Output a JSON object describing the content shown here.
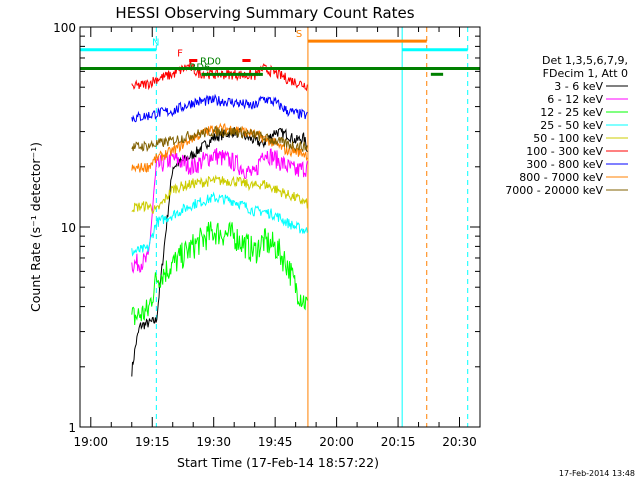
{
  "chart_data": {
    "type": "line",
    "title": "HESSI Observing Summary Count Rates",
    "xlabel": "Start Time (17-Feb-14 18:57:22)",
    "ylabel": "Count Rate (s⁻¹ detector⁻¹)",
    "yscale": "log",
    "ylim": [
      1,
      100
    ],
    "xlim": [
      "18:57:22",
      "20:35:00"
    ],
    "x_ticks": [
      "19:00",
      "19:15",
      "19:30",
      "19:45",
      "20:00",
      "20:15",
      "20:30"
    ],
    "y_ticks": [
      "1",
      "10",
      "100"
    ],
    "grid": false,
    "legend_position": "right",
    "legend_header": [
      "Det 1,3,5,6,7,9,",
      "FDecim 1, Att 0"
    ],
    "legend": [
      {
        "label": "3 - 6 keV",
        "color": "#000000"
      },
      {
        "label": "6 - 12 keV",
        "color": "#ff00ff"
      },
      {
        "label": "12 - 25 keV",
        "color": "#00ff00"
      },
      {
        "label": "25 - 50 keV",
        "color": "#00ffff"
      },
      {
        "label": "50 - 100 keV",
        "color": "#cccc00"
      },
      {
        "label": "100 - 300 keV",
        "color": "#ff0000"
      },
      {
        "label": "300 - 800 keV",
        "color": "#0000ff"
      },
      {
        "label": "800 - 7000 keV",
        "color": "#ff8000"
      },
      {
        "label": "7000 - 20000 keV",
        "color": "#806000"
      }
    ],
    "series": [
      {
        "name": "3 - 6 keV",
        "color": "#000000",
        "x": [
          "19:10",
          "19:11",
          "19:12",
          "19:16",
          "19:20",
          "19:25",
          "19:30",
          "19:35",
          "19:40",
          "19:42",
          "19:45",
          "19:48",
          "19:50",
          "19:52",
          "19:53"
        ],
        "y": [
          1.9,
          2.6,
          3.2,
          3.4,
          20,
          23,
          28,
          30,
          27,
          26,
          30,
          29,
          27,
          28,
          24
        ]
      },
      {
        "name": "6 - 12 keV",
        "color": "#ff00ff",
        "x": [
          "19:10",
          "19:14",
          "19:16",
          "19:20",
          "19:25",
          "19:30",
          "19:35",
          "19:40",
          "19:42",
          "19:45",
          "19:48",
          "19:50",
          "19:53"
        ],
        "y": [
          6.5,
          6.8,
          20,
          22,
          20,
          23,
          21,
          18,
          24,
          22,
          20,
          19,
          20
        ]
      },
      {
        "name": "12 - 25 keV",
        "color": "#00ff00",
        "x": [
          "19:10",
          "19:14",
          "19:16",
          "19:20",
          "19:25",
          "19:30",
          "19:35",
          "19:40",
          "19:42",
          "19:45",
          "19:48",
          "19:50",
          "19:53"
        ],
        "y": [
          3.5,
          3.8,
          5.5,
          6.5,
          8,
          9.5,
          9,
          7.5,
          8.5,
          8,
          6.5,
          5,
          4
        ]
      },
      {
        "name": "25 - 50 keV",
        "color": "#00ffff",
        "x": [
          "19:10",
          "19:14",
          "19:16",
          "19:20",
          "19:25",
          "19:30",
          "19:35",
          "19:40",
          "19:42",
          "19:45",
          "19:48",
          "19:50",
          "19:53"
        ],
        "y": [
          7.5,
          7.8,
          10.5,
          11.5,
          13,
          14,
          13.5,
          12,
          12,
          11.5,
          10.5,
          10,
          9.5
        ]
      },
      {
        "name": "50 - 100 keV",
        "color": "#cccc00",
        "x": [
          "19:10",
          "19:14",
          "19:16",
          "19:20",
          "19:25",
          "19:30",
          "19:35",
          "19:40",
          "19:42",
          "19:45",
          "19:48",
          "19:50",
          "19:53"
        ],
        "y": [
          12.5,
          12.8,
          12,
          15.5,
          16.5,
          17,
          17,
          16,
          16.5,
          15.5,
          14.5,
          14,
          13
        ]
      },
      {
        "name": "100 - 300 keV",
        "color": "#ff0000",
        "x": [
          "19:10",
          "19:14",
          "19:16",
          "19:20",
          "19:24",
          "19:26",
          "19:30",
          "19:35",
          "19:40",
          "19:42",
          "19:45",
          "19:48",
          "19:50",
          "19:53"
        ],
        "y": [
          50,
          52,
          55,
          58,
          64,
          59,
          58,
          58,
          57,
          62,
          59,
          55,
          53,
          51
        ]
      },
      {
        "name": "300 - 800 keV",
        "color": "#0000ff",
        "x": [
          "19:10",
          "19:14",
          "19:16",
          "19:20",
          "19:25",
          "19:30",
          "19:35",
          "19:40",
          "19:42",
          "19:45",
          "19:48",
          "19:50",
          "19:53"
        ],
        "y": [
          35,
          36,
          37,
          38,
          42,
          43,
          42,
          40,
          44,
          42,
          38,
          37,
          36
        ]
      },
      {
        "name": "800 - 7000 keV",
        "color": "#ff8000",
        "x": [
          "19:10",
          "19:14",
          "19:16",
          "19:20",
          "19:25",
          "19:30",
          "19:35",
          "19:40",
          "19:42",
          "19:45",
          "19:48",
          "19:50",
          "19:53"
        ],
        "y": [
          19.5,
          20,
          22,
          24,
          28,
          31,
          31,
          29,
          28,
          26,
          24,
          24,
          23
        ]
      },
      {
        "name": "7000 - 20000 keV",
        "color": "#806000",
        "x": [
          "19:10",
          "19:14",
          "19:16",
          "19:20",
          "19:25",
          "19:30",
          "19:35",
          "19:40",
          "19:42",
          "19:45",
          "19:48",
          "19:50",
          "19:53"
        ],
        "y": [
          25,
          25.5,
          26,
          27,
          29,
          30,
          30,
          29,
          28,
          27,
          26,
          25.5,
          25
        ]
      }
    ],
    "state_bars": [
      {
        "label": "N",
        "color": "#00ffff",
        "y": 77,
        "segments": [
          [
            "18:57:22",
            "19:16"
          ],
          [
            "20:16",
            "20:32"
          ]
        ]
      },
      {
        "label": "S",
        "color": "#ff8000",
        "y": 85,
        "segments": [
          [
            "19:53",
            "20:22"
          ]
        ]
      },
      {
        "label": "F",
        "color": "#ff0000",
        "y": 68,
        "segments": [
          [
            "19:24",
            "19:26"
          ],
          [
            "19:37",
            "19:39"
          ]
        ]
      },
      {
        "label": "RD0",
        "color": "#008000",
        "y": 62,
        "segments": [
          [
            "18:57:22",
            "20:35"
          ]
        ]
      },
      {
        "label": "RD6",
        "color": "#008000",
        "y": 58,
        "segments": [
          [
            "19:27",
            "19:42"
          ],
          [
            "20:23",
            "20:26"
          ]
        ]
      }
    ],
    "vertical_markers": [
      {
        "x": "18:57:22",
        "color": "#00ffff",
        "style": "solid"
      },
      {
        "x": "19:16",
        "color": "#00ffff",
        "style": "dashed"
      },
      {
        "x": "19:53",
        "color": "#ff8000",
        "style": "solid"
      },
      {
        "x": "20:16",
        "color": "#00ffff",
        "style": "solid"
      },
      {
        "x": "20:22",
        "color": "#ff8000",
        "style": "dashed"
      },
      {
        "x": "20:32",
        "color": "#00ffff",
        "style": "dashed"
      }
    ]
  },
  "footer": {
    "timestamp": "17-Feb-2014 13:48"
  }
}
